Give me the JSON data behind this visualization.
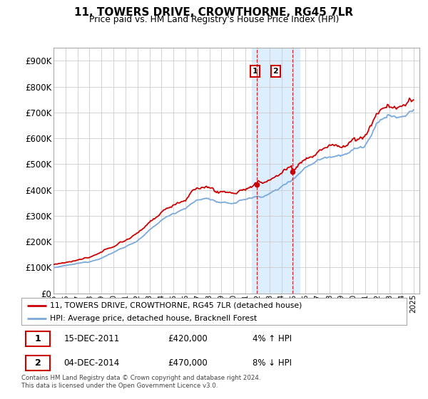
{
  "title": "11, TOWERS DRIVE, CROWTHORNE, RG45 7LR",
  "subtitle": "Price paid vs. HM Land Registry's House Price Index (HPI)",
  "ylim": [
    0,
    950000
  ],
  "yticks": [
    0,
    100000,
    200000,
    300000,
    400000,
    500000,
    600000,
    700000,
    800000,
    900000
  ],
  "legend_line1": "11, TOWERS DRIVE, CROWTHORNE, RG45 7LR (detached house)",
  "legend_line2": "HPI: Average price, detached house, Bracknell Forest",
  "annotation1_label": "1",
  "annotation1_date": "15-DEC-2011",
  "annotation1_price": "£420,000",
  "annotation1_hpi": "4% ↑ HPI",
  "annotation2_label": "2",
  "annotation2_date": "04-DEC-2014",
  "annotation2_price": "£470,000",
  "annotation2_hpi": "8% ↓ HPI",
  "footer": "Contains HM Land Registry data © Crown copyright and database right 2024.\nThis data is licensed under the Open Government Licence v3.0.",
  "sale1_x": 2011.96,
  "sale1_y": 420000,
  "sale2_x": 2014.92,
  "sale2_y": 470000,
  "highlight1_xstart": 2011.5,
  "highlight1_xend": 2013.0,
  "highlight2_xstart": 2013.0,
  "highlight2_xend": 2015.5,
  "line_color_red": "#cc0000",
  "line_color_blue": "#7aaadd",
  "highlight_color": "#ddeeff",
  "grid_color": "#cccccc",
  "xmin": 1995,
  "xmax": 2025.5
}
